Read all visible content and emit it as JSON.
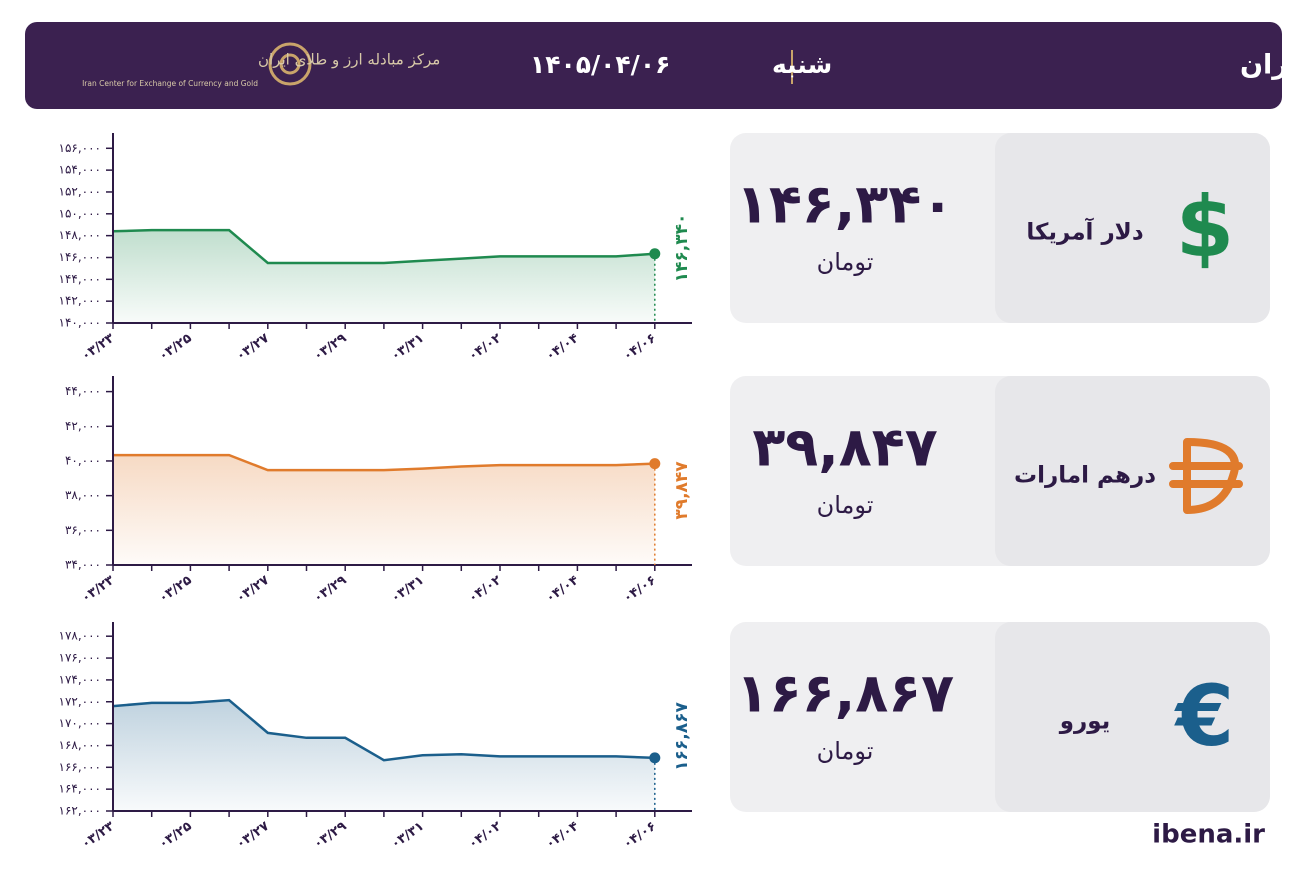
{
  "header": {
    "title": "نرخ قیمت ارز مرکز مبادله ایران",
    "weekday": "شنبه",
    "date": "۱۴۰۵/۰۴/۰۶",
    "logo_title": "مرکز مبادله ارز و طلای ایران",
    "logo_subtitle": "Iran Center for Exchange of Currency and Gold"
  },
  "footer": "ibena.ir",
  "chart_data": [
    {
      "type": "line",
      "name": "دلار آمریکا",
      "symbol": "$",
      "unit": "تومان",
      "color": "#1f8a4f",
      "categories": [
        "۰۳/۲۳",
        null,
        "۰۳/۲۵",
        null,
        "۰۳/۲۷",
        null,
        "۰۳/۲۹",
        null,
        "۰۳/۳۱",
        null,
        "۰۴/۰۲",
        null,
        "۰۴/۰۴",
        null,
        "۰۴/۰۶"
      ],
      "values": [
        148400,
        148500,
        148500,
        148500,
        145500,
        145500,
        145500,
        145500,
        145700,
        145900,
        146100,
        146100,
        146100,
        146100,
        146340
      ],
      "value_labels": [
        null,
        null,
        null,
        null,
        null,
        null,
        null,
        null,
        null,
        null,
        null,
        null,
        null,
        null,
        "۱۴۶,۳۴۰"
      ],
      "ylim": [
        140000,
        157400
      ],
      "yticks": [
        {
          "value": 140000,
          "label": "۱۴۰,۰۰۰"
        },
        {
          "value": 142000,
          "label": "۱۴۲,۰۰۰"
        },
        {
          "value": 144000,
          "label": "۱۴۴,۰۰۰"
        },
        {
          "value": 146000,
          "label": "۱۴۶,۰۰۰"
        },
        {
          "value": 148000,
          "label": "۱۴۸,۰۰۰"
        },
        {
          "value": 150000,
          "label": "۱۵۰,۰۰۰"
        },
        {
          "value": 152000,
          "label": "۱۵۲,۰۰۰"
        },
        {
          "value": 154000,
          "label": "۱۵۴,۰۰۰"
        },
        {
          "value": 156000,
          "label": "۱۵۶,۰۰۰"
        }
      ]
    },
    {
      "type": "line",
      "name": "درهم امارات",
      "unit": "تومان",
      "color": "#e07b2c",
      "categories": [
        "۰۳/۲۳",
        null,
        "۰۳/۲۵",
        null,
        "۰۳/۲۷",
        null,
        "۰۳/۲۹",
        null,
        "۰۳/۳۱",
        null,
        "۰۴/۰۲",
        null,
        "۰۴/۰۴",
        null,
        "۰۴/۰۶"
      ],
      "values": [
        40340,
        40340,
        40340,
        40340,
        39470,
        39470,
        39470,
        39470,
        39560,
        39680,
        39760,
        39760,
        39760,
        39760,
        39847
      ],
      "value_labels": [
        null,
        null,
        null,
        null,
        null,
        null,
        null,
        null,
        null,
        null,
        null,
        null,
        null,
        null,
        "۳۹,۸۴۷"
      ],
      "ylim": [
        34000,
        44900
      ],
      "yticks": [
        {
          "value": 34000,
          "label": "۳۴,۰۰۰"
        },
        {
          "value": 36000,
          "label": "۳۶,۰۰۰"
        },
        {
          "value": 38000,
          "label": "۳۸,۰۰۰"
        },
        {
          "value": 40000,
          "label": "۴۰,۰۰۰"
        },
        {
          "value": 42000,
          "label": "۴۲,۰۰۰"
        },
        {
          "value": 44000,
          "label": "۴۴,۰۰۰"
        }
      ]
    },
    {
      "type": "line",
      "name": "یورو",
      "symbol": "€",
      "unit": "تومان",
      "color": "#1b5f8c",
      "categories": [
        "۰۳/۲۳",
        null,
        "۰۳/۲۵",
        null,
        "۰۳/۲۷",
        null,
        "۰۳/۲۹",
        null,
        "۰۳/۳۱",
        null,
        "۰۴/۰۲",
        null,
        "۰۴/۰۴",
        null,
        "۰۴/۰۶"
      ],
      "values": [
        171600,
        171900,
        171900,
        172150,
        169150,
        168700,
        168700,
        166650,
        167100,
        167200,
        167000,
        167000,
        167000,
        167000,
        166867
      ],
      "value_labels": [
        null,
        null,
        null,
        null,
        null,
        null,
        null,
        null,
        null,
        null,
        null,
        null,
        null,
        null,
        "۱۶۶,۸۶۷"
      ],
      "ylim": [
        162000,
        179300
      ],
      "yticks": [
        {
          "value": 162000,
          "label": "۱۶۲,۰۰۰"
        },
        {
          "value": 164000,
          "label": "۱۶۴,۰۰۰"
        },
        {
          "value": 166000,
          "label": "۱۶۶,۰۰۰"
        },
        {
          "value": 168000,
          "label": "۱۶۸,۰۰۰"
        },
        {
          "value": 170000,
          "label": "۱۷۰,۰۰۰"
        },
        {
          "value": 172000,
          "label": "۱۷۲,۰۰۰"
        },
        {
          "value": 174000,
          "label": "۱۷۴,۰۰۰"
        },
        {
          "value": 176000,
          "label": "۱۷۶,۰۰۰"
        },
        {
          "value": 178000,
          "label": "۱۷۸,۰۰۰"
        }
      ]
    }
  ]
}
